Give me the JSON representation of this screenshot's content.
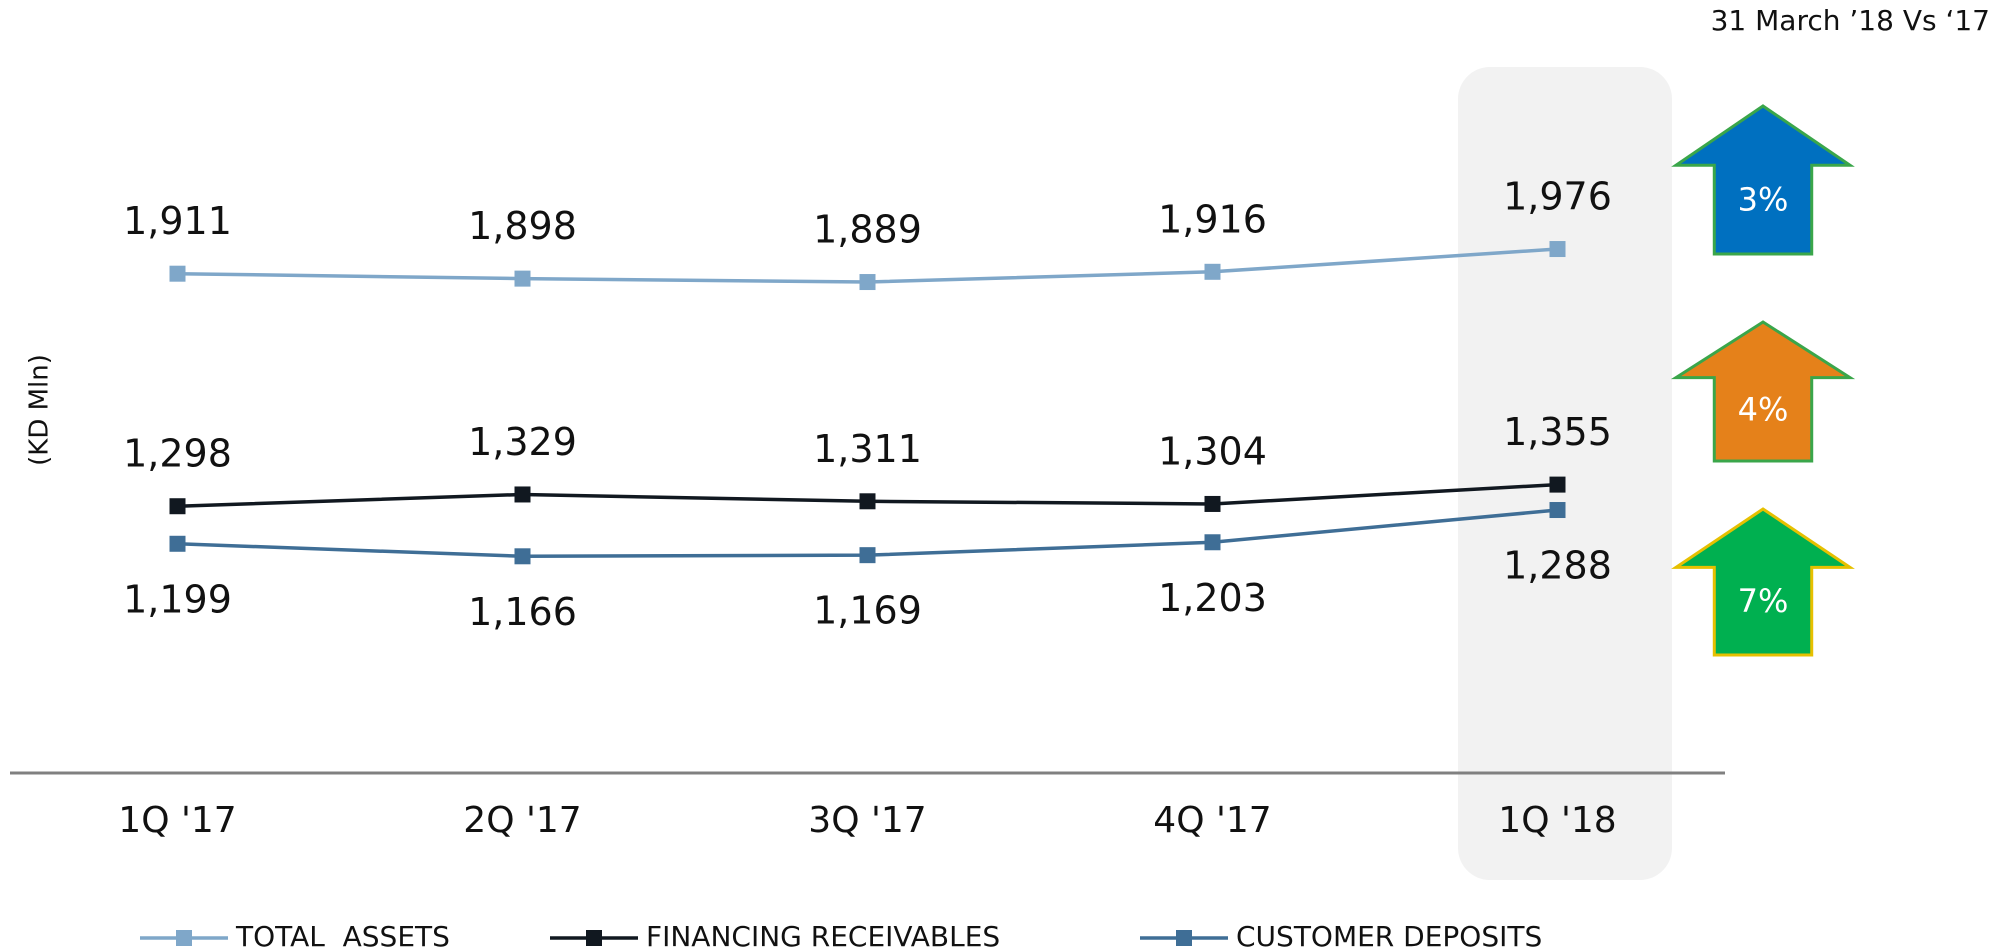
{
  "chart_data": {
    "type": "line",
    "header": "31 March ’18 Vs ‘17",
    "ylabel": "(KD Mln)",
    "categories": [
      "1Q '17",
      "2Q '17",
      "3Q '17",
      "4Q '17",
      "1Q '18"
    ],
    "ylim": [
      600,
      2100
    ],
    "series": [
      {
        "name": "TOTAL  ASSETS",
        "color": "#7fa7c9",
        "values": [
          1911,
          1898,
          1889,
          1916,
          1976
        ],
        "value_labels": [
          "1,911",
          "1,898",
          "1,889",
          "1,916",
          "1,976"
        ]
      },
      {
        "name": "FINANCING RECEIVABLES",
        "color": "#111820",
        "values": [
          1298,
          1329,
          1311,
          1304,
          1355
        ],
        "value_labels": [
          "1,298",
          "1,329",
          "1,311",
          "1,304",
          "1,355"
        ]
      },
      {
        "name": "CUSTOMER DEPOSITS",
        "color": "#3f6e96",
        "values": [
          1199,
          1166,
          1169,
          1203,
          1288
        ],
        "value_labels": [
          "1,199",
          "1,166",
          "1,169",
          "1,203",
          "1,288"
        ]
      }
    ],
    "annotations": [
      {
        "label": "3%",
        "color": "#0070c0",
        "border": "#3aa64a"
      },
      {
        "label": "4%",
        "color": "#e5811a",
        "border": "#3aa64a"
      },
      {
        "label": "7%",
        "color": "#00b050",
        "border": "#e6c000"
      }
    ]
  }
}
